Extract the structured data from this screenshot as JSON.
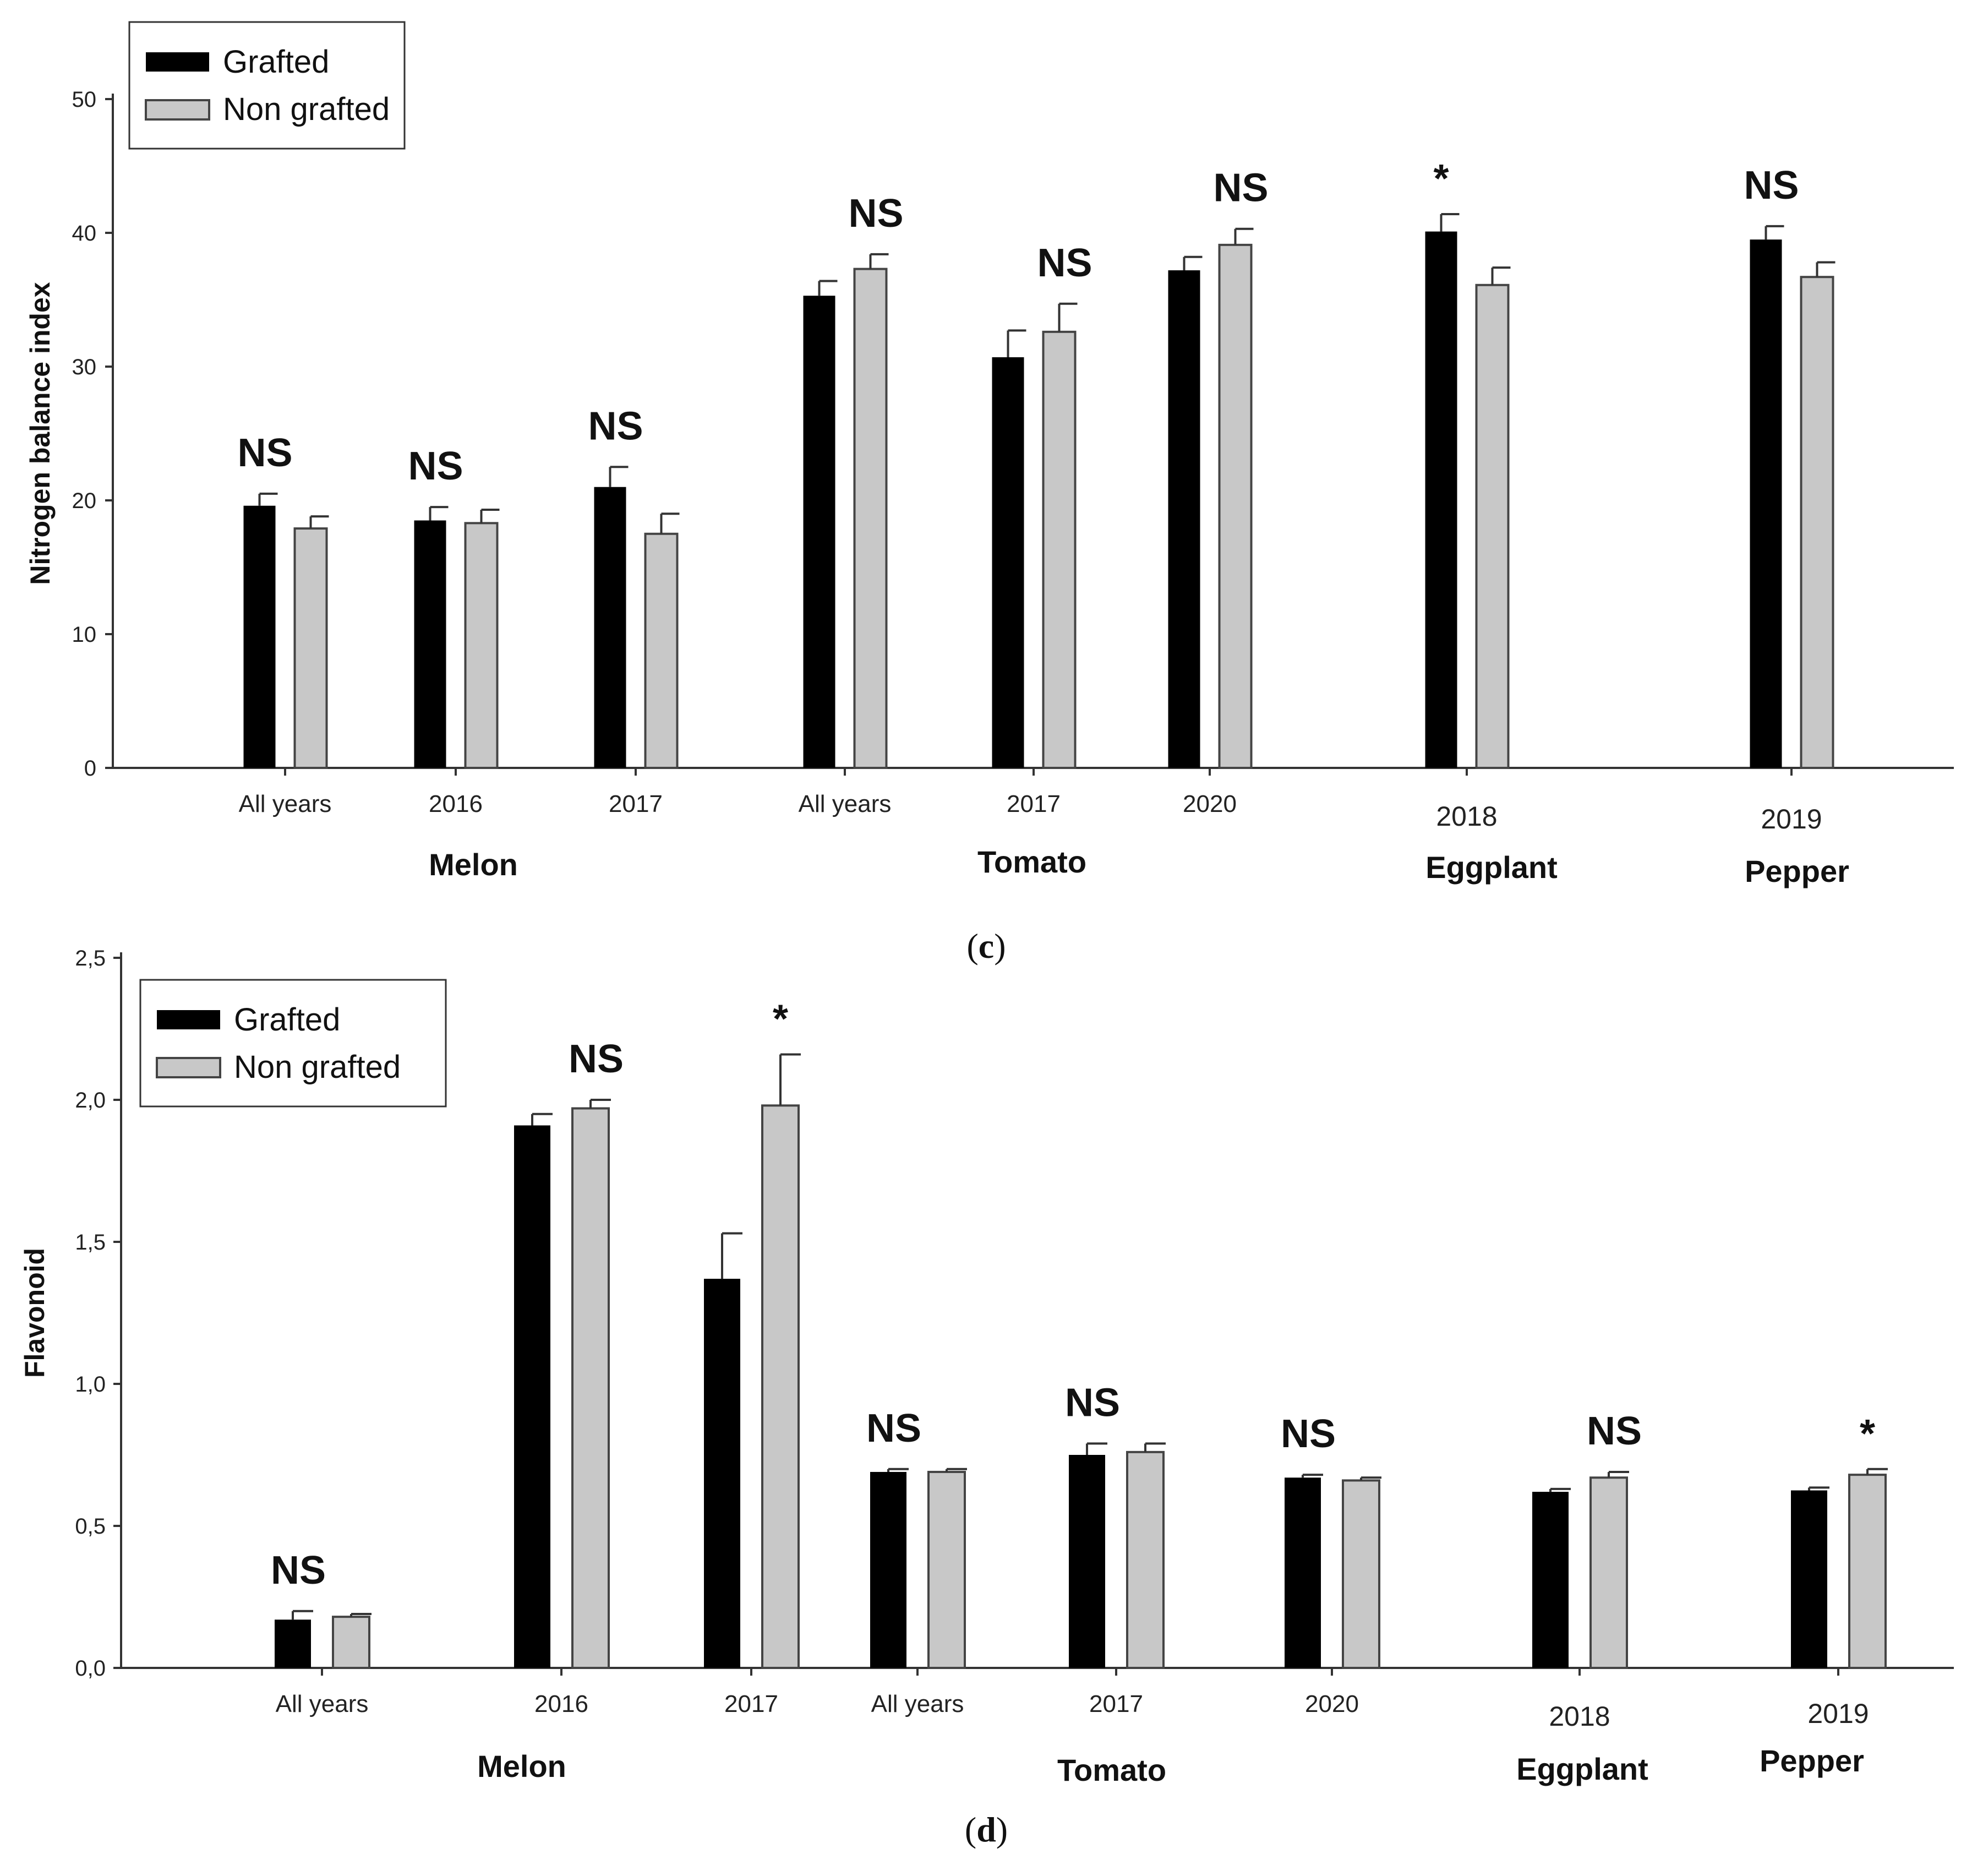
{
  "chart_data": [
    {
      "type": "bar",
      "panel_label": "c",
      "ylabel": "Nitrogen balance index",
      "ylim": [
        0,
        50
      ],
      "yticks": [
        "0",
        "10",
        "20",
        "30",
        "40",
        "50"
      ],
      "legend": [
        "Grafted",
        "Non grafted"
      ],
      "legend_position": "top-left",
      "groups": [
        {
          "name": "Melon",
          "categories": [
            "All years",
            "2016",
            "2017"
          ]
        },
        {
          "name": "Tomato",
          "categories": [
            "All years",
            "2017",
            "2020"
          ]
        },
        {
          "name": "Eggplant",
          "categories": [
            "2018"
          ]
        },
        {
          "name": "Pepper",
          "categories": [
            "2019"
          ]
        }
      ],
      "categories": [
        "All years",
        "2016",
        "2017",
        "All years",
        "2017",
        "2020",
        "2018",
        "2019"
      ],
      "series": [
        {
          "name": "Grafted",
          "values": [
            19.6,
            18.5,
            21.0,
            35.3,
            30.7,
            37.2,
            40.1,
            39.5
          ],
          "errors": [
            0.9,
            1.0,
            1.5,
            1.1,
            2.0,
            1.0,
            1.3,
            1.0
          ]
        },
        {
          "name": "Non grafted",
          "values": [
            17.9,
            18.3,
            17.5,
            37.3,
            32.6,
            39.1,
            36.1,
            36.7
          ],
          "errors": [
            0.9,
            1.0,
            1.5,
            1.1,
            2.1,
            1.2,
            1.3,
            1.1
          ]
        }
      ],
      "significance": [
        "NS",
        "NS",
        "NS",
        "NS",
        "NS",
        "NS",
        "*",
        "NS"
      ]
    },
    {
      "type": "bar",
      "panel_label": "d",
      "ylabel": "Flavonoid",
      "ylim": [
        0,
        2.5
      ],
      "yticks": [
        "0,0",
        "0,5",
        "1,0",
        "1,5",
        "2,0",
        "2,5"
      ],
      "legend": [
        "Grafted",
        "Non grafted"
      ],
      "legend_position": "top-left",
      "groups": [
        {
          "name": "Melon",
          "categories": [
            "All years",
            "2016",
            "2017"
          ]
        },
        {
          "name": "Tomato",
          "categories": [
            "All years",
            "2017",
            "2020"
          ]
        },
        {
          "name": "Eggplant",
          "categories": [
            "2018"
          ]
        },
        {
          "name": "Pepper",
          "categories": [
            "2019"
          ]
        }
      ],
      "categories": [
        "All years",
        "2016",
        "2017",
        "All years",
        "2017",
        "2020",
        "2018",
        "2019"
      ],
      "series": [
        {
          "name": "Grafted",
          "values": [
            0.17,
            1.91,
            1.37,
            0.69,
            0.75,
            0.67,
            0.62,
            0.625
          ],
          "errors": [
            0.03,
            0.04,
            0.16,
            0.01,
            0.04,
            0.01,
            0.01,
            0.01
          ]
        },
        {
          "name": "Non grafted",
          "values": [
            0.18,
            1.97,
            1.98,
            0.69,
            0.76,
            0.66,
            0.67,
            0.68
          ],
          "errors": [
            0.01,
            0.03,
            0.18,
            0.01,
            0.03,
            0.01,
            0.02,
            0.02
          ]
        }
      ],
      "significance": [
        "NS",
        "NS",
        "*",
        "NS",
        "NS",
        "NS",
        "NS",
        "*"
      ]
    }
  ]
}
